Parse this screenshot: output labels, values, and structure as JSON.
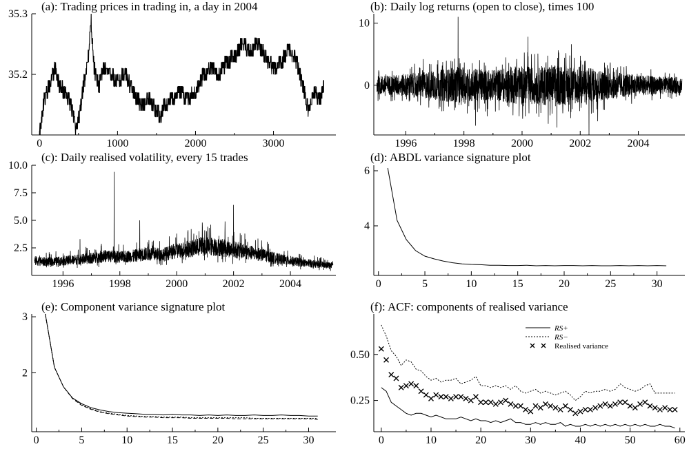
{
  "chart_data": [
    {
      "id": "a",
      "type": "line",
      "title": "(a): Trading prices in trading in, a day in 2004",
      "xlim": [
        -100,
        3800
      ],
      "ylim": [
        35.1,
        35.3
      ],
      "xticks": [
        0,
        1000,
        2000,
        3000
      ],
      "xtick_labels": [
        "0",
        "1000",
        "2000",
        "3000"
      ],
      "yticks": [
        35.2,
        35.3
      ],
      "ytick_labels": [
        "35.2",
        "35.3"
      ],
      "style": "step-noisy",
      "x": [
        0,
        60,
        120,
        200,
        260,
        330,
        400,
        470,
        520,
        560,
        620,
        660,
        700,
        760,
        820,
        900,
        1000,
        1100,
        1200,
        1300,
        1400,
        1500,
        1560,
        1600,
        1700,
        1800,
        1900,
        2000,
        2100,
        2200,
        2300,
        2400,
        2500,
        2600,
        2700,
        2800,
        2900,
        3000,
        3100,
        3200,
        3300,
        3400,
        3450,
        3500,
        3600,
        3650
      ],
      "y": [
        35.1,
        35.16,
        35.18,
        35.21,
        35.18,
        35.17,
        35.15,
        35.11,
        35.14,
        35.18,
        35.22,
        35.29,
        35.21,
        35.18,
        35.21,
        35.2,
        35.19,
        35.2,
        35.17,
        35.15,
        35.16,
        35.14,
        35.13,
        35.15,
        35.16,
        35.17,
        35.16,
        35.17,
        35.2,
        35.21,
        35.2,
        35.22,
        35.23,
        35.25,
        35.24,
        35.25,
        35.23,
        35.21,
        35.22,
        35.24,
        35.22,
        35.17,
        35.14,
        35.17,
        35.16,
        35.18
      ]
    },
    {
      "id": "b",
      "type": "line",
      "title": "(b): Daily log returns (open to close), times 100",
      "xlim": [
        1994.9,
        2005.6
      ],
      "ylim": [
        -8,
        11.5
      ],
      "xticks": [
        1996,
        1998,
        2000,
        2002,
        2004
      ],
      "xtick_labels": [
        "1996",
        "1998",
        "2000",
        "2002",
        "2004"
      ],
      "yticks": [
        0,
        10
      ],
      "ytick_labels": [
        "0",
        "10"
      ],
      "style": "noise",
      "x": [
        1995,
        1995.5,
        1996,
        1996.5,
        1997,
        1997.5,
        1998,
        1998.5,
        1999,
        1999.5,
        2000,
        2000.5,
        2001,
        2001.5,
        2002,
        2002.5,
        2003,
        2003.5,
        2004,
        2004.5,
        2005,
        2005.5
      ],
      "amplitude": [
        2.0,
        2.2,
        2.5,
        2.8,
        3.2,
        3.6,
        3.8,
        3.5,
        3.3,
        3.8,
        4.2,
        4.0,
        4.5,
        4.3,
        4.0,
        3.6,
        3.0,
        2.6,
        2.2,
        2.0,
        1.8,
        1.8
      ],
      "spikes": [
        {
          "x": 1996.6,
          "y": 4.2
        },
        {
          "x": 1997.8,
          "y": 11.0
        },
        {
          "x": 1998.4,
          "y": -6.5
        },
        {
          "x": 1998.8,
          "y": -5.0
        },
        {
          "x": 2000.2,
          "y": 7.8
        },
        {
          "x": 2000.9,
          "y": -6.2
        },
        {
          "x": 2001.2,
          "y": -6.8
        },
        {
          "x": 2001.7,
          "y": 6.6
        },
        {
          "x": 2002.3,
          "y": -8.0
        },
        {
          "x": 2002.6,
          "y": -5.8
        }
      ]
    },
    {
      "id": "c",
      "type": "line",
      "title": "(c): Daily realised volatility, every 15 trades",
      "xlim": [
        1994.9,
        2005.6
      ],
      "ylim": [
        0,
        10
      ],
      "xticks": [
        1996,
        1998,
        2000,
        2002,
        2004
      ],
      "xtick_labels": [
        "1996",
        "1998",
        "2000",
        "2002",
        "2004"
      ],
      "yticks": [
        2.5,
        5.0,
        7.5,
        10.0
      ],
      "ytick_labels": [
        "2.5",
        "5.0",
        "7.5",
        "10.0"
      ],
      "style": "noise-positive",
      "x": [
        1995,
        1995.5,
        1996,
        1996.5,
        1997,
        1997.5,
        1998,
        1998.5,
        1999,
        1999.5,
        2000,
        2000.5,
        2001,
        2001.5,
        2002,
        2002.5,
        2003,
        2003.5,
        2004,
        2004.5,
        2005,
        2005.5
      ],
      "level": [
        1.2,
        1.1,
        1.2,
        1.3,
        1.4,
        1.6,
        1.5,
        1.6,
        1.8,
        1.7,
        2.0,
        2.2,
        2.4,
        2.3,
        2.1,
        1.9,
        1.7,
        1.4,
        1.2,
        1.0,
        0.9,
        0.8
      ],
      "spikes": [
        {
          "x": 1996.6,
          "y": 3.3
        },
        {
          "x": 1997.8,
          "y": 9.4
        },
        {
          "x": 1998.7,
          "y": 5.0
        },
        {
          "x": 2000.0,
          "y": 3.8
        },
        {
          "x": 2000.9,
          "y": 4.8
        },
        {
          "x": 2001.2,
          "y": 4.6
        },
        {
          "x": 2001.7,
          "y": 4.9
        },
        {
          "x": 2002.0,
          "y": 6.4
        },
        {
          "x": 2002.4,
          "y": 3.8
        },
        {
          "x": 2003.0,
          "y": 2.6
        }
      ]
    },
    {
      "id": "d",
      "type": "line",
      "title": "(d): ABDL variance signature plot",
      "xlim": [
        -0.5,
        33
      ],
      "ylim": [
        2.2,
        6.2
      ],
      "xticks": [
        0,
        5,
        10,
        15,
        20,
        25,
        30
      ],
      "xtick_labels": [
        "0",
        "5",
        "10",
        "15",
        "20",
        "25",
        "30"
      ],
      "yticks": [
        4,
        6
      ],
      "ytick_labels": [
        "4",
        "6"
      ],
      "series": [
        {
          "x": [
            1,
            2,
            3,
            4,
            5,
            6,
            7,
            8,
            9,
            10,
            11,
            12,
            13,
            14,
            15,
            16,
            17,
            18,
            19,
            20,
            21,
            22,
            23,
            24,
            25,
            26,
            27,
            28,
            29,
            30,
            31
          ],
          "values": [
            6.1,
            4.2,
            3.5,
            3.1,
            2.9,
            2.8,
            2.72,
            2.66,
            2.62,
            2.6,
            2.59,
            2.57,
            2.57,
            2.56,
            2.56,
            2.57,
            2.55,
            2.56,
            2.55,
            2.56,
            2.56,
            2.55,
            2.56,
            2.55,
            2.55,
            2.56,
            2.55,
            2.56,
            2.55,
            2.56,
            2.55
          ],
          "style": "solid"
        }
      ]
    },
    {
      "id": "e",
      "type": "line",
      "title": "(e): Component variance signature plot",
      "xlim": [
        -0.5,
        33
      ],
      "ylim": [
        0.95,
        3.05
      ],
      "xticks": [
        0,
        5,
        10,
        15,
        20,
        25,
        30
      ],
      "xtick_labels": [
        "0",
        "5",
        "10",
        "15",
        "20",
        "25",
        "30"
      ],
      "yticks": [
        2,
        3
      ],
      "ytick_labels": [
        "2",
        "3"
      ],
      "series": [
        {
          "x": [
            1,
            2,
            3,
            4,
            5,
            6,
            7,
            8,
            9,
            10,
            11,
            12,
            13,
            14,
            15,
            16,
            17,
            18,
            19,
            20,
            21,
            22,
            23,
            24,
            25,
            26,
            27,
            28,
            29,
            30,
            31
          ],
          "values": [
            3.05,
            2.1,
            1.75,
            1.55,
            1.45,
            1.38,
            1.34,
            1.31,
            1.29,
            1.28,
            1.27,
            1.26,
            1.26,
            1.25,
            1.26,
            1.25,
            1.25,
            1.24,
            1.25,
            1.24,
            1.25,
            1.24,
            1.24,
            1.25,
            1.24,
            1.24,
            1.25,
            1.24,
            1.24,
            1.23,
            1.23
          ],
          "style": "solid"
        },
        {
          "x": [
            1,
            2,
            3,
            4,
            5,
            6,
            7,
            8,
            9,
            10,
            11,
            12,
            13,
            14,
            15,
            16,
            17,
            18,
            19,
            20,
            21,
            22,
            23,
            24,
            25,
            26,
            27,
            28,
            29,
            30,
            31
          ],
          "values": [
            3.05,
            2.1,
            1.75,
            1.55,
            1.43,
            1.36,
            1.31,
            1.28,
            1.26,
            1.24,
            1.23,
            1.22,
            1.22,
            1.21,
            1.21,
            1.21,
            1.2,
            1.2,
            1.2,
            1.2,
            1.2,
            1.2,
            1.2,
            1.19,
            1.19,
            1.19,
            1.19,
            1.19,
            1.19,
            1.19,
            1.19
          ],
          "style": "dotted"
        },
        {
          "x": [
            1,
            2,
            3,
            4,
            5,
            6,
            7,
            8,
            9,
            10,
            11,
            12,
            13,
            14,
            15,
            16,
            17,
            18,
            19,
            20,
            21,
            22,
            23,
            24,
            25,
            26,
            27,
            28,
            29,
            30,
            31
          ],
          "values": [
            3.05,
            2.1,
            1.75,
            1.54,
            1.42,
            1.35,
            1.3,
            1.27,
            1.25,
            1.23,
            1.22,
            1.21,
            1.21,
            1.2,
            1.2,
            1.2,
            1.19,
            1.19,
            1.19,
            1.19,
            1.19,
            1.18,
            1.18,
            1.18,
            1.18,
            1.18,
            1.18,
            1.18,
            1.18,
            1.18,
            1.17
          ],
          "style": "dashed"
        }
      ]
    },
    {
      "id": "f",
      "type": "line",
      "title": "(f): ACF: components of realised variance",
      "xlim": [
        -1.5,
        61
      ],
      "ylim": [
        0.08,
        0.72
      ],
      "xticks": [
        0,
        10,
        20,
        30,
        40,
        50,
        60
      ],
      "xtick_labels": [
        "0",
        "10",
        "20",
        "30",
        "40",
        "50",
        "60"
      ],
      "yticks": [
        0.25,
        0.5
      ],
      "ytick_labels": [
        "0.25",
        "0.50"
      ],
      "legend": {
        "position": "top-right",
        "entries": [
          "RS+",
          "RS−",
          "Realised variance"
        ]
      },
      "series": [
        {
          "name": "RS+",
          "style": "solid",
          "x": [
            0,
            1,
            2,
            3,
            4,
            5,
            6,
            7,
            8,
            9,
            10,
            11,
            12,
            13,
            14,
            15,
            16,
            17,
            18,
            19,
            20,
            21,
            22,
            23,
            24,
            25,
            26,
            27,
            28,
            29,
            30,
            31,
            32,
            33,
            34,
            35,
            36,
            37,
            38,
            39,
            40,
            41,
            42,
            43,
            44,
            45,
            46,
            47,
            48,
            49,
            50,
            51,
            52,
            53,
            54,
            55,
            56,
            57,
            58,
            59
          ],
          "values": [
            0.32,
            0.3,
            0.24,
            0.22,
            0.2,
            0.18,
            0.17,
            0.18,
            0.18,
            0.17,
            0.16,
            0.17,
            0.16,
            0.15,
            0.15,
            0.15,
            0.16,
            0.15,
            0.14,
            0.15,
            0.14,
            0.14,
            0.13,
            0.14,
            0.13,
            0.14,
            0.15,
            0.13,
            0.13,
            0.12,
            0.12,
            0.13,
            0.12,
            0.13,
            0.12,
            0.12,
            0.13,
            0.11,
            0.12,
            0.11,
            0.11,
            0.12,
            0.11,
            0.12,
            0.11,
            0.12,
            0.11,
            0.12,
            0.11,
            0.12,
            0.11,
            0.12,
            0.11,
            0.12,
            0.11,
            0.11,
            0.12,
            0.11,
            0.11,
            0.1
          ]
        },
        {
          "name": "RS−",
          "style": "dotted",
          "x": [
            0,
            1,
            2,
            3,
            4,
            5,
            6,
            7,
            8,
            9,
            10,
            11,
            12,
            13,
            14,
            15,
            16,
            17,
            18,
            19,
            20,
            21,
            22,
            23,
            24,
            25,
            26,
            27,
            28,
            29,
            30,
            31,
            32,
            33,
            34,
            35,
            36,
            37,
            38,
            39,
            40,
            41,
            42,
            43,
            44,
            45,
            46,
            47,
            48,
            49,
            50,
            51,
            52,
            53,
            54,
            55,
            56,
            57,
            58,
            59
          ],
          "values": [
            0.66,
            0.6,
            0.52,
            0.49,
            0.44,
            0.47,
            0.46,
            0.42,
            0.41,
            0.38,
            0.36,
            0.37,
            0.35,
            0.36,
            0.36,
            0.37,
            0.34,
            0.35,
            0.36,
            0.38,
            0.33,
            0.33,
            0.32,
            0.33,
            0.32,
            0.33,
            0.31,
            0.33,
            0.3,
            0.29,
            0.3,
            0.31,
            0.29,
            0.3,
            0.29,
            0.28,
            0.29,
            0.3,
            0.28,
            0.25,
            0.27,
            0.3,
            0.29,
            0.3,
            0.3,
            0.31,
            0.3,
            0.31,
            0.34,
            0.32,
            0.31,
            0.3,
            0.31,
            0.33,
            0.34,
            0.29,
            0.29,
            0.29,
            0.29,
            0.29
          ]
        },
        {
          "name": "Realised variance",
          "style": "cross",
          "x": [
            0,
            1,
            2,
            3,
            4,
            5,
            6,
            7,
            8,
            9,
            10,
            11,
            12,
            13,
            14,
            15,
            16,
            17,
            18,
            19,
            20,
            21,
            22,
            23,
            24,
            25,
            26,
            27,
            28,
            29,
            30,
            31,
            32,
            33,
            34,
            35,
            36,
            37,
            38,
            39,
            40,
            41,
            42,
            43,
            44,
            45,
            46,
            47,
            48,
            49,
            50,
            51,
            52,
            53,
            54,
            55,
            56,
            57,
            58,
            59
          ],
          "values": [
            0.53,
            0.47,
            0.39,
            0.37,
            0.32,
            0.33,
            0.34,
            0.33,
            0.3,
            0.28,
            0.26,
            0.28,
            0.27,
            0.27,
            0.26,
            0.27,
            0.27,
            0.26,
            0.25,
            0.27,
            0.24,
            0.24,
            0.24,
            0.23,
            0.24,
            0.25,
            0.23,
            0.22,
            0.22,
            0.2,
            0.19,
            0.22,
            0.21,
            0.23,
            0.22,
            0.21,
            0.2,
            0.22,
            0.2,
            0.18,
            0.19,
            0.2,
            0.2,
            0.21,
            0.22,
            0.23,
            0.22,
            0.23,
            0.24,
            0.24,
            0.22,
            0.21,
            0.23,
            0.24,
            0.22,
            0.21,
            0.2,
            0.21,
            0.2,
            0.2
          ]
        }
      ]
    }
  ]
}
